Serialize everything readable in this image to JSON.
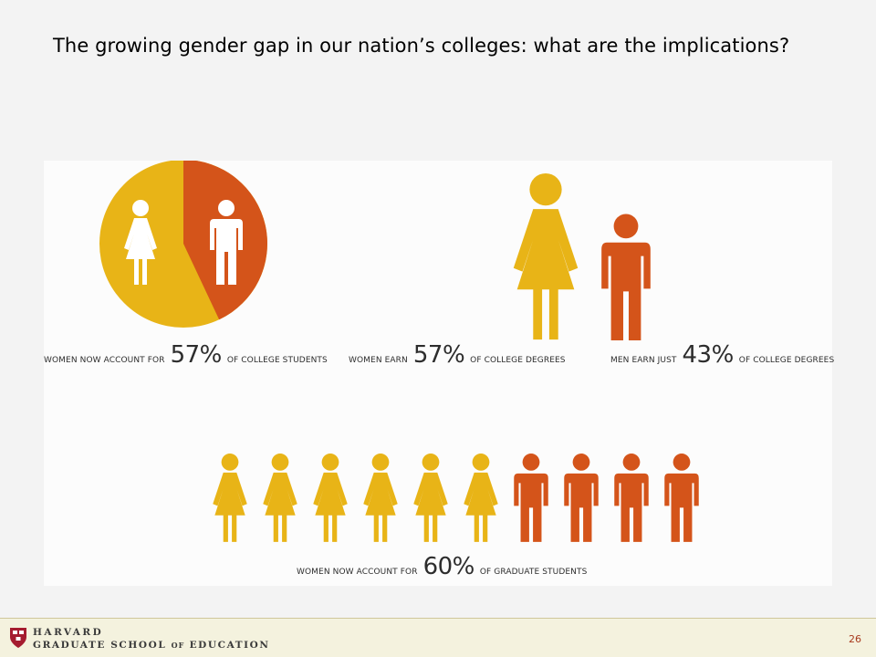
{
  "title": "The growing gender gap in our nation’s colleges: what are the implications?",
  "colors": {
    "women": "#e8b417",
    "men": "#d4541a",
    "figure_on_pie": "#ffffff",
    "harvard_crimson": "#a51c30"
  },
  "icons": [
    "woman-figure-icon",
    "man-figure-icon",
    "harvard-shield-icon"
  ],
  "infographic": {
    "students": {
      "pre": "WOMEN NOW ACCOUNT FOR",
      "value": "57%",
      "post": "OF COLLEGE STUDENTS",
      "women_share": 0.57
    },
    "women_degrees": {
      "pre": "WOMEN EARN",
      "value": "57%",
      "post": "OF COLLEGE DEGREES"
    },
    "men_degrees": {
      "pre": "MEN EARN JUST",
      "value": "43%",
      "post": "OF COLLEGE DEGREES"
    },
    "graduate": {
      "pre": "WOMEN NOW ACCOUNT FOR",
      "value": "60%",
      "post": "OF GRADUATE STUDENTS",
      "women_count": 6,
      "men_count": 4
    }
  },
  "footer": {
    "line1": "HARVARD",
    "line2_a": "GRADUATE SCHOOL",
    "line2_of": "OF",
    "line2_b": "EDUCATION",
    "page_number": "26"
  }
}
